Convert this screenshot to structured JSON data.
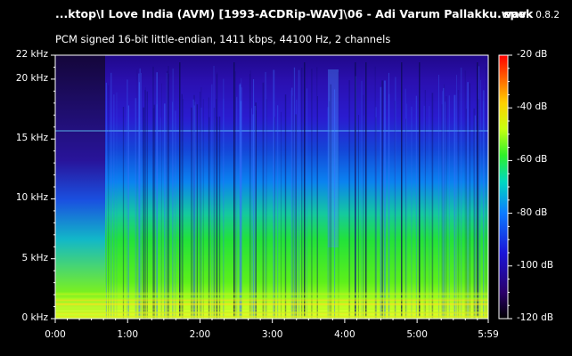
{
  "window": {
    "file_title": "...ktop\\I Love India (AVM) [1993-ACDRip-WAV]\\06 - Adi Varum Pallakku.wav",
    "app_name": "spek",
    "app_version": "0.8.2",
    "stream_info": "PCM signed 16-bit little-endian, 1411 kbps, 44100 Hz, 2 channels"
  },
  "spectrogram": {
    "freq_axis": {
      "labels": [
        "22 kHz",
        "20 kHz",
        "15 kHz",
        "10 kHz",
        "5 kHz",
        "0 kHz"
      ],
      "values_khz": [
        22,
        20,
        15,
        10,
        5,
        0
      ],
      "range_khz": [
        0,
        22
      ]
    },
    "time_axis": {
      "labels": [
        "0:00",
        "1:00",
        "2:00",
        "3:00",
        "4:00",
        "5:00",
        "5:59"
      ],
      "values_s": [
        0,
        60,
        120,
        180,
        240,
        300,
        359
      ],
      "range_s": [
        0,
        359
      ]
    },
    "db_scale": {
      "labels": [
        "-20 dB",
        "-40 dB",
        "-60 dB",
        "-80 dB",
        "-100 dB",
        "-120 dB"
      ],
      "values_db": [
        -20,
        -40,
        -60,
        -80,
        -100,
        -120
      ],
      "range_db": [
        -120,
        -20
      ]
    },
    "colors": {
      "background": "#000000",
      "text": "#ffffff",
      "gradient": [
        "#000000",
        "#2a006a",
        "#1a14d8",
        "#0c7bff",
        "#00d8c0",
        "#2ef02a",
        "#c8ff10",
        "#ffd000",
        "#ff5a00",
        "#ff0000"
      ]
    }
  }
}
